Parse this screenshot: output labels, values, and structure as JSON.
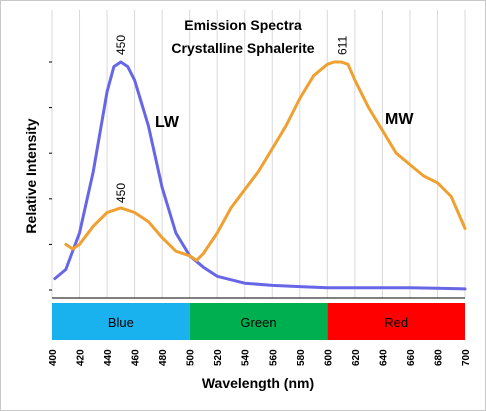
{
  "chart_data": {
    "type": "line",
    "title": "Emission Spectra",
    "subtitle": "Crystalline Sphalerite",
    "xlabel": "Wavelength (nm)",
    "ylabel": "Relative Intensity",
    "xlim": [
      400,
      700
    ],
    "ylim": [
      0,
      1
    ],
    "xticks": [
      "400",
      "420",
      "440",
      "460",
      "480",
      "500",
      "520",
      "540",
      "560",
      "580",
      "600",
      "620",
      "640",
      "660",
      "680",
      "700"
    ],
    "grid": "vertical",
    "series": [
      {
        "name": "LW",
        "color": "#6666e6",
        "peak_label": "450",
        "x": [
          402,
          410,
          420,
          430,
          440,
          445,
          450,
          455,
          460,
          470,
          480,
          490,
          500,
          510,
          520,
          540,
          560,
          580,
          600,
          620,
          640,
          660,
          680,
          700
        ],
        "y": [
          0.05,
          0.09,
          0.25,
          0.52,
          0.87,
          0.98,
          1.0,
          0.98,
          0.92,
          0.72,
          0.45,
          0.25,
          0.15,
          0.1,
          0.06,
          0.03,
          0.02,
          0.015,
          0.01,
          0.01,
          0.01,
          0.01,
          0.008,
          0.005
        ]
      },
      {
        "name": "MW",
        "color": "#f0a030",
        "peak_label": "611",
        "x": [
          410,
          415,
          420,
          430,
          440,
          450,
          460,
          470,
          480,
          490,
          500,
          505,
          510,
          520,
          530,
          540,
          550,
          560,
          570,
          580,
          590,
          600,
          605,
          610,
          615,
          620,
          630,
          640,
          650,
          660,
          670,
          680,
          690,
          700
        ],
        "y": [
          0.2,
          0.18,
          0.2,
          0.28,
          0.34,
          0.36,
          0.34,
          0.3,
          0.23,
          0.17,
          0.15,
          0.13,
          0.16,
          0.25,
          0.36,
          0.44,
          0.52,
          0.62,
          0.72,
          0.84,
          0.94,
          0.99,
          1.0,
          1.0,
          0.99,
          0.92,
          0.8,
          0.7,
          0.6,
          0.55,
          0.5,
          0.47,
          0.41,
          0.27
        ]
      }
    ],
    "bands": [
      {
        "name": "Blue",
        "from": 400,
        "to": 500,
        "color": "#1ab2ee"
      },
      {
        "name": "Green",
        "from": 500,
        "to": 600,
        "color": "#00b050"
      },
      {
        "name": "Red",
        "from": 600,
        "to": 700,
        "color": "#ff0000"
      }
    ]
  }
}
